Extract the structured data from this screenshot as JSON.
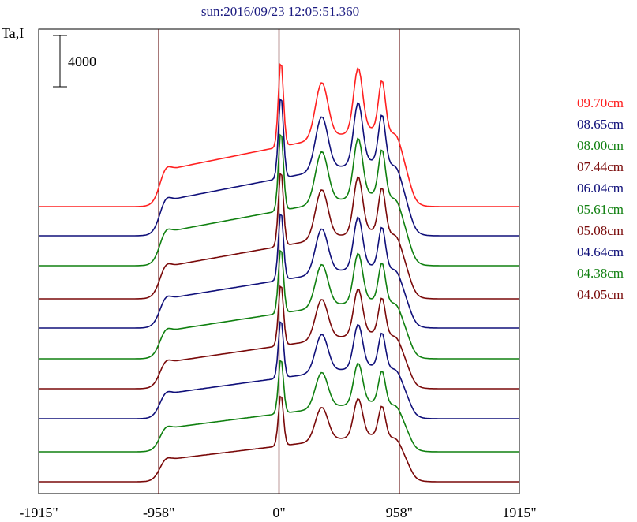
{
  "chart_data": {
    "type": "line",
    "title": "sun:2016/09/23 12:05:51.360",
    "ylabel": "Ta,I",
    "scale_bar_label": "4000",
    "scale_bar_value": 4000,
    "xlim": [
      -1915,
      1915
    ],
    "x_ticks": [
      {
        "value": -1915,
        "label": "-1915\""
      },
      {
        "value": -958,
        "label": "-958\""
      },
      {
        "value": 0,
        "label": "0\""
      },
      {
        "value": 958,
        "label": "958\""
      },
      {
        "value": 1915,
        "label": "1915\""
      }
    ],
    "reference_lines": [
      -958,
      0,
      958
    ],
    "series": [
      {
        "name": "09.70cm",
        "color": "#ff2020",
        "amp": 1.0
      },
      {
        "name": "08.65cm",
        "color": "#10107a",
        "amp": 0.96
      },
      {
        "name": "08.00cm",
        "color": "#108010",
        "amp": 0.92
      },
      {
        "name": "07.44cm",
        "color": "#7a0a0a",
        "amp": 0.88
      },
      {
        "name": "06.04cm",
        "color": "#10107a",
        "amp": 0.8
      },
      {
        "name": "05.61cm",
        "color": "#108010",
        "amp": 0.76
      },
      {
        "name": "05.08cm",
        "color": "#7a0a0a",
        "amp": 0.72
      },
      {
        "name": "04.64cm",
        "color": "#10107a",
        "amp": 0.68
      },
      {
        "name": "04.38cm",
        "color": "#108010",
        "amp": 0.64
      },
      {
        "name": "04.05cm",
        "color": "#7a0a0a",
        "amp": 0.6
      }
    ],
    "grid": false,
    "legend": "right"
  }
}
